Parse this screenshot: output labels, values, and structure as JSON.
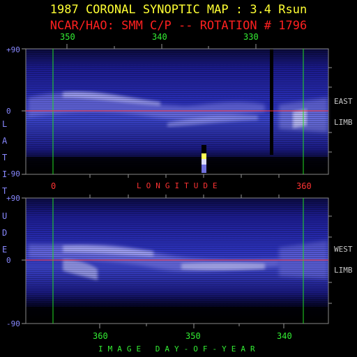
{
  "title": "1987 CORONAL SYNOPTIC MAP : 3.4 Rsun",
  "subtitle": "NCAR/HAO: SMM C/P -- ROTATION # 1796",
  "top_panel": {
    "longitude_ticks": [
      "350",
      "340",
      "330"
    ],
    "lat_ticks": [
      "+90",
      "0",
      "-90"
    ],
    "side_labels": [
      "EAST",
      "LIMB"
    ]
  },
  "middle_axis": {
    "left_value": "0",
    "label": "LONGITUDE",
    "right_value": "360"
  },
  "bottom_panel": {
    "lat_ticks": [
      "+90",
      "0",
      "-90"
    ],
    "side_labels": [
      "WEST",
      "LIMB"
    ],
    "day_ticks": [
      "360",
      "350",
      "340"
    ],
    "axis_label": "IMAGE DAY-OF-YEAR"
  },
  "vertical_label": [
    "L",
    "A",
    "T",
    "I",
    "T",
    "U",
    "D",
    "E"
  ],
  "colors": {
    "background": "#000000",
    "title": "#ffff33",
    "subtitle": "#ff2020",
    "green_marker": "#22dd22",
    "red_equator": "#ff3030",
    "map_blue": "#1a1aa0"
  }
}
